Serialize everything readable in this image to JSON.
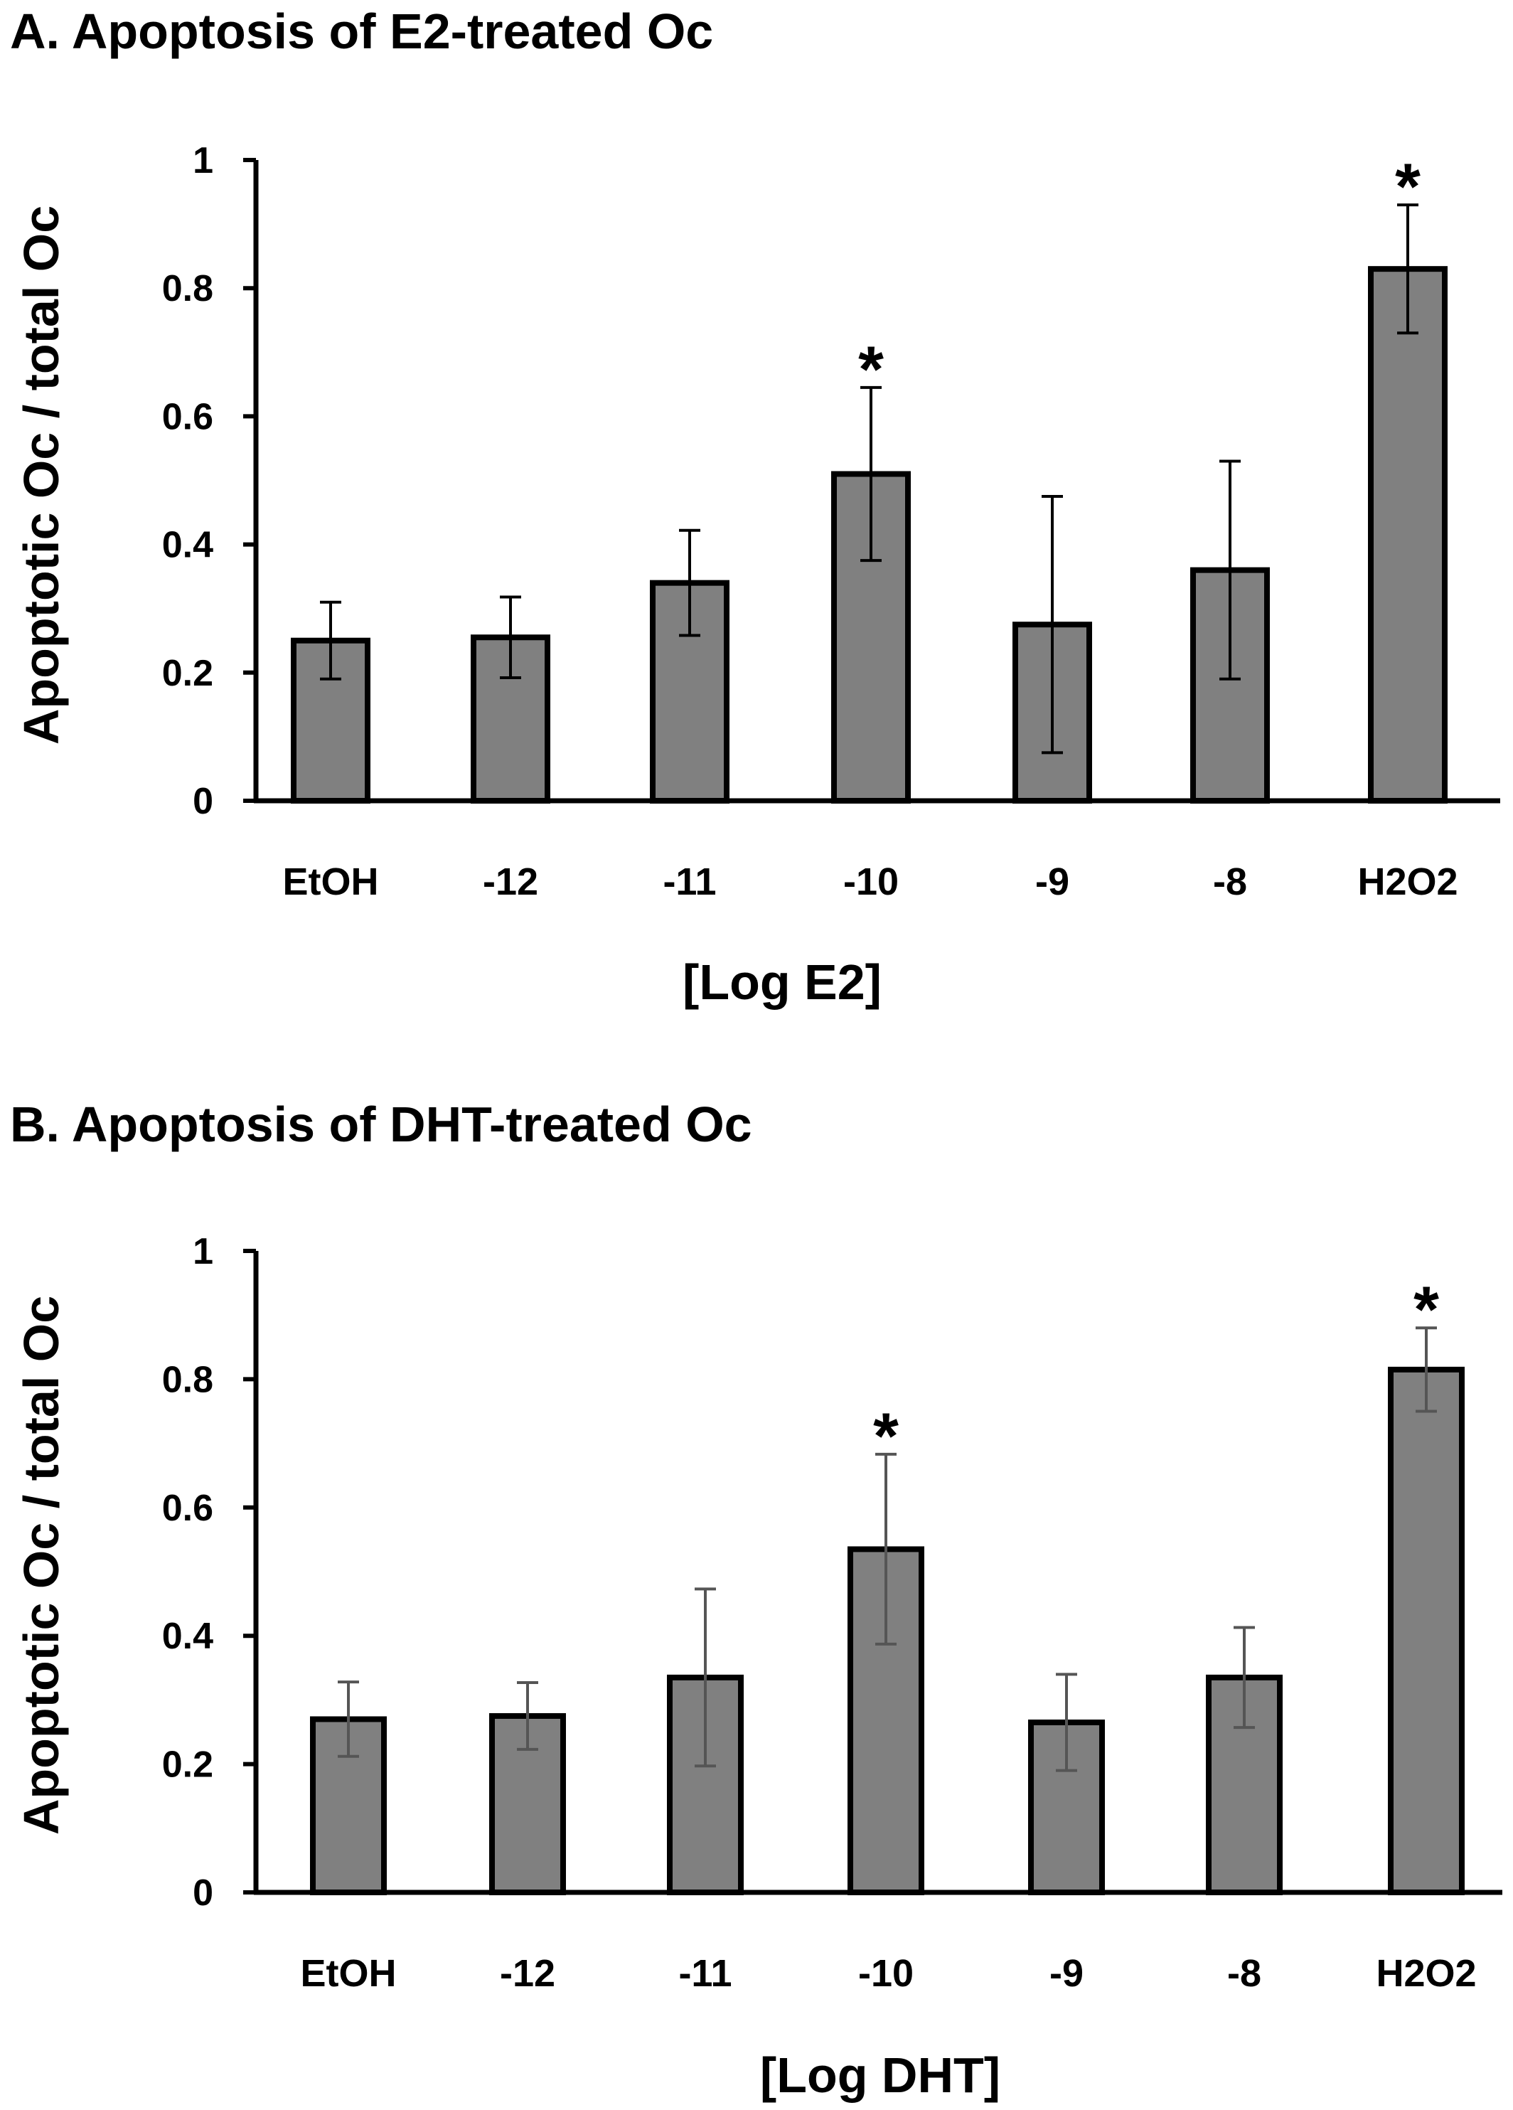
{
  "colors": {
    "bar_fill": "#808080",
    "bar_stroke": "#000000",
    "axis": "#000000",
    "errorbar_a": "#000000",
    "errorbar_b": "#555555",
    "background": "#ffffff"
  },
  "chart_data": [
    {
      "type": "bar",
      "title": "A. Apoptosis of E2-treated Oc",
      "xlabel": "[Log E2]",
      "ylabel": "Apoptotic Oc / total Oc",
      "ylim": [
        0,
        1
      ],
      "yticks": [
        "0",
        "0.2",
        "0.4",
        "0.6",
        "0.8",
        "1"
      ],
      "categories": [
        "EtOH",
        "-12",
        "-11",
        "-10",
        "-9",
        "-8",
        "H2O2"
      ],
      "values": [
        0.25,
        0.255,
        0.34,
        0.51,
        0.275,
        0.36,
        0.83
      ],
      "error": [
        0.06,
        0.063,
        0.082,
        0.135,
        0.2,
        0.17,
        0.1
      ],
      "significance": [
        "",
        "",
        "",
        "*",
        "",
        "",
        "*"
      ],
      "grid": false
    },
    {
      "type": "bar",
      "title": "B. Apoptosis of DHT-treated Oc",
      "xlabel": "[Log DHT]",
      "ylabel": "Apoptotic Oc / total Oc",
      "ylim": [
        0,
        1
      ],
      "yticks": [
        "0",
        "0.2",
        "0.4",
        "0.6",
        "0.8",
        "1"
      ],
      "categories": [
        "EtOH",
        "-12",
        "-11",
        "-10",
        "-9",
        "-8",
        "H2O2"
      ],
      "values": [
        0.27,
        0.275,
        0.335,
        0.535,
        0.265,
        0.335,
        0.815
      ],
      "error": [
        0.058,
        0.052,
        0.138,
        0.148,
        0.075,
        0.078,
        0.065
      ],
      "significance": [
        "",
        "",
        "",
        "*",
        "",
        "",
        "*"
      ],
      "grid": false
    }
  ]
}
